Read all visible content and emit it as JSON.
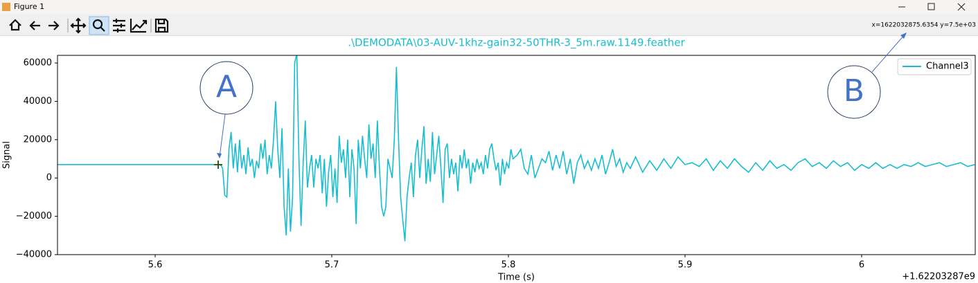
{
  "window": {
    "title": "Figure 1",
    "status": "x=1622032875.6354 y=7.5e+03"
  },
  "annotations": [
    "A",
    "B"
  ],
  "chart_data": {
    "type": "line",
    "title": ".\\DEMODATA\\03-AUV-1khz-gain32-50THR-3_5m.raw.1149.feather",
    "x_label": "Time (s)",
    "y_label": "Signal",
    "x_offset_label": "+1.62203287e9",
    "legend": "upper right",
    "grid": false,
    "xlim": [
      5.5447,
      6.0643
    ],
    "ylim": [
      -40000,
      64000
    ],
    "xticks": [
      5.6,
      5.7,
      5.8,
      5.9,
      6.0
    ],
    "yticks": [
      {
        "value": -40000,
        "label": "−40000"
      },
      {
        "value": -20000,
        "label": "−20000"
      },
      0,
      20000,
      40000,
      60000
    ],
    "x": [
      5.5447,
      5.58,
      5.62,
      5.6355,
      5.637,
      5.6382,
      5.6394,
      5.6406,
      5.6418,
      5.643,
      5.6442,
      5.6454,
      5.6466,
      5.6478,
      5.649,
      5.6502,
      5.6514,
      5.6526,
      5.6538,
      5.655,
      5.6562,
      5.6574,
      5.6586,
      5.6598,
      5.661,
      5.6622,
      5.6634,
      5.6646,
      5.6658,
      5.667,
      5.6682,
      5.6694,
      5.6706,
      5.6718,
      5.673,
      5.6742,
      5.6754,
      5.6766,
      5.6778,
      5.679,
      5.6802,
      5.6814,
      5.6826,
      5.6838,
      5.685,
      5.6862,
      5.6874,
      5.6886,
      5.6898,
      5.691,
      5.6922,
      5.6934,
      5.6946,
      5.6958,
      5.697,
      5.6982,
      5.6994,
      5.7006,
      5.7018,
      5.703,
      5.7042,
      5.7054,
      5.7066,
      5.7078,
      5.709,
      5.7102,
      5.7114,
      5.7126,
      5.7138,
      5.715,
      5.7162,
      5.7174,
      5.7186,
      5.7198,
      5.721,
      5.7222,
      5.7234,
      5.7246,
      5.7258,
      5.727,
      5.7282,
      5.7294,
      5.7306,
      5.7318,
      5.733,
      5.7342,
      5.7354,
      5.7366,
      5.7378,
      5.739,
      5.7402,
      5.7414,
      5.7426,
      5.7438,
      5.745,
      5.7462,
      5.7474,
      5.7486,
      5.7498,
      5.751,
      5.7522,
      5.7534,
      5.7546,
      5.7558,
      5.757,
      5.7582,
      5.7594,
      5.7606,
      5.7618,
      5.763,
      5.7642,
      5.7654,
      5.7666,
      5.7678,
      5.769,
      5.7702,
      5.7714,
      5.7726,
      5.7738,
      5.775,
      5.7762,
      5.7774,
      5.7786,
      5.7798,
      5.781,
      5.7822,
      5.7834,
      5.7846,
      5.7858,
      5.787,
      5.7882,
      5.7894,
      5.7906,
      5.7918,
      5.793,
      5.7942,
      5.7954,
      5.7966,
      5.7978,
      5.799,
      5.8002,
      5.8014,
      5.8026,
      5.805,
      5.807,
      5.809,
      5.811,
      5.813,
      5.815,
      5.817,
      5.819,
      5.821,
      5.823,
      5.825,
      5.827,
      5.829,
      5.831,
      5.833,
      5.835,
      5.837,
      5.839,
      5.841,
      5.843,
      5.845,
      5.847,
      5.849,
      5.851,
      5.853,
      5.855,
      5.857,
      5.859,
      5.861,
      5.863,
      5.865,
      5.867,
      5.869,
      5.872,
      5.876,
      5.88,
      5.884,
      5.888,
      5.892,
      5.896,
      5.9,
      5.904,
      5.908,
      5.912,
      5.916,
      5.92,
      5.924,
      5.928,
      5.932,
      5.936,
      5.94,
      5.944,
      5.948,
      5.952,
      5.956,
      5.96,
      5.964,
      5.968,
      5.972,
      5.976,
      5.98,
      5.984,
      5.988,
      5.992,
      5.996,
      6.0,
      6.004,
      6.008,
      6.012,
      6.016,
      6.02,
      6.024,
      6.028,
      6.032,
      6.036,
      6.04,
      6.044,
      6.048,
      6.052,
      6.056,
      6.06,
      6.064
    ],
    "series": [
      {
        "name": "Channel3",
        "color": "#17becf",
        "values": [
          7000,
          7000,
          7000,
          7000,
          7000,
          5000,
          -9000,
          -10000,
          15000,
          24000,
          5000,
          18000,
          3000,
          20000,
          5000,
          12000,
          2000,
          16000,
          6000,
          10000,
          0,
          9000,
          5000,
          18000,
          10000,
          20000,
          2000,
          12000,
          5000,
          20000,
          40000,
          15000,
          0,
          26000,
          -15000,
          -30000,
          5000,
          -28000,
          -10000,
          60000,
          65000,
          10000,
          -25000,
          8000,
          30000,
          -5000,
          5000,
          12000,
          -5000,
          10000,
          5000,
          12000,
          -8000,
          10000,
          -15000,
          3000,
          12000,
          -10000,
          5000,
          -13000,
          22000,
          8000,
          15000,
          0,
          20000,
          -10000,
          15000,
          5000,
          -24000,
          20000,
          5000,
          22000,
          10000,
          0,
          28000,
          10000,
          18000,
          0,
          30000,
          5000,
          -15000,
          -20000,
          -15000,
          10000,
          5000,
          0,
          20000,
          58000,
          20000,
          -10000,
          -22000,
          -33000,
          -10000,
          0,
          8000,
          -10000,
          12000,
          20000,
          0,
          15000,
          27000,
          -3000,
          10000,
          -2000,
          24000,
          2000,
          12000,
          22000,
          5000,
          -13000,
          15000,
          18000,
          0,
          10000,
          2000,
          8000,
          -7000,
          12000,
          5000,
          15000,
          5000,
          10000,
          -3000,
          8000,
          3000,
          10000,
          5000,
          8000,
          2000,
          12000,
          5000,
          15000,
          18000,
          10000,
          4000,
          8000,
          -4000,
          10000,
          2000,
          8000,
          5000,
          15000,
          10000,
          12000,
          15000,
          5000,
          2000,
          12000,
          0,
          5000,
          10000,
          8000,
          14000,
          4000,
          12000,
          5000,
          14000,
          2000,
          10000,
          -3000,
          8000,
          12000,
          5000,
          9000,
          4000,
          10000,
          5000,
          12000,
          2000,
          8000,
          15000,
          6000,
          10000,
          3000,
          8000,
          5000,
          11000,
          3000,
          9000,
          4000,
          10000,
          5000,
          11000,
          7000,
          8000,
          6000,
          10000,
          4000,
          9000,
          5000,
          10000,
          6000,
          3000,
          8000,
          4000,
          9000,
          5000,
          7000,
          4000,
          8000,
          10000,
          6000,
          8000,
          5000,
          9000,
          6000,
          8000,
          4000,
          7000,
          5000,
          8000,
          5000,
          7000,
          5000,
          7000,
          6000,
          8000,
          6000,
          7000,
          8000,
          6000,
          7000,
          8000,
          6000,
          7000
        ]
      }
    ]
  }
}
